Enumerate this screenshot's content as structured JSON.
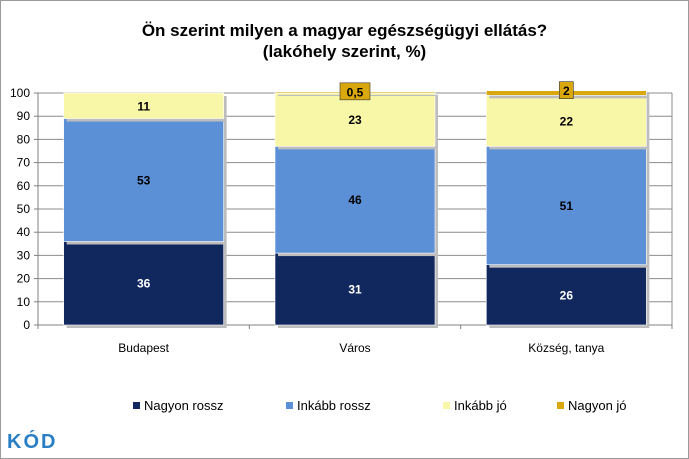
{
  "chart_data": {
    "type": "bar",
    "stacked": true,
    "title": [
      "Ön szerint milyen a magyar egészségügyi ellátás?",
      "(lakóhely szerint, %)"
    ],
    "categories": [
      "Budapest",
      "Város",
      "Község, tanya"
    ],
    "ylim": [
      0,
      100
    ],
    "yticks": [
      0,
      10,
      20,
      30,
      40,
      50,
      60,
      70,
      80,
      90,
      100
    ],
    "grid": true,
    "legend_position": "bottom",
    "series": [
      {
        "name": "Nagyon rossz",
        "values": [
          36,
          31,
          26
        ],
        "labels": [
          "36",
          "31",
          "26"
        ],
        "color": "#10285e",
        "label_color": "#ffffff"
      },
      {
        "name": "Inkább rossz",
        "values": [
          53,
          46,
          51
        ],
        "labels": [
          "53",
          "46",
          "51"
        ],
        "color": "#5b8fd6",
        "label_color": "#000000"
      },
      {
        "name": "Inkább jó",
        "values": [
          11,
          23,
          22
        ],
        "labels": [
          "11",
          "23",
          "22"
        ],
        "color": "#f8f7a8",
        "label_color": "#000000"
      },
      {
        "name": "Nagyon jó",
        "values": [
          0,
          0.5,
          2
        ],
        "labels": [
          "",
          "0,5",
          "2"
        ],
        "color": "#d9a80f",
        "label_color": "#000000"
      }
    ]
  },
  "logo": {
    "text": "KÓD"
  }
}
